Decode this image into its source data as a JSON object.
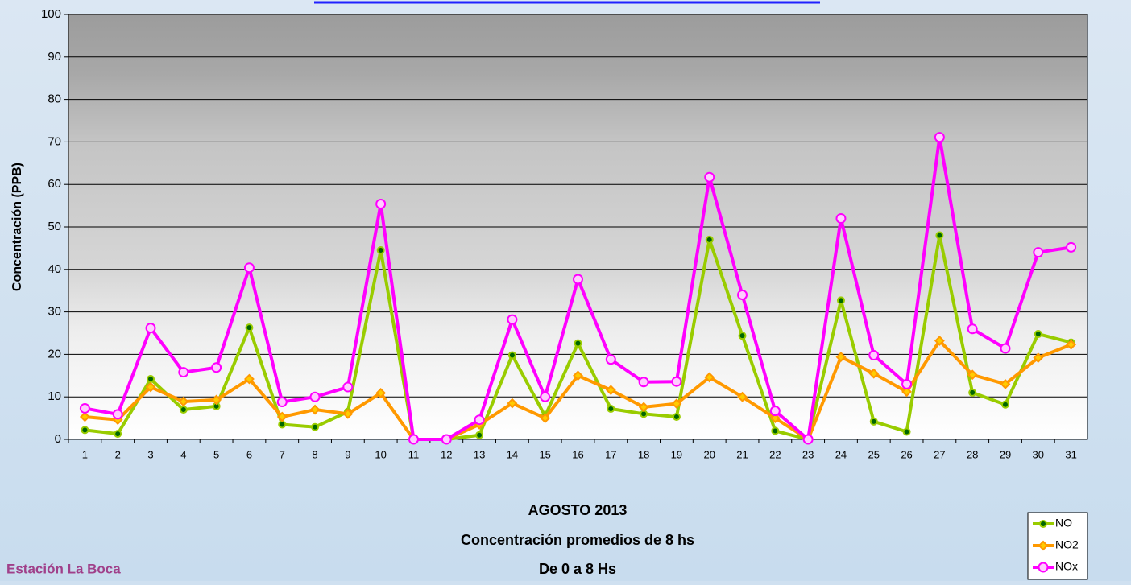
{
  "chart_data": {
    "type": "line",
    "title": [
      "AGOSTO 2013",
      "Concentración promedios de 8 hs",
      "De 0 a 8 Hs"
    ],
    "station": "Estación La Boca",
    "y_label": "Concentración  (PPB)",
    "categories": [
      "1",
      "2",
      "3",
      "4",
      "5",
      "6",
      "7",
      "8",
      "9",
      "10",
      "11",
      "12",
      "13",
      "14",
      "15",
      "16",
      "17",
      "18",
      "19",
      "20",
      "21",
      "22",
      "23",
      "24",
      "25",
      "26",
      "27",
      "28",
      "29",
      "30",
      "31"
    ],
    "series": [
      {
        "name": "NO",
        "color": "#99cc00",
        "marker_fill": "#006600",
        "marker": "circle",
        "values": [
          2.2,
          1.3,
          14.2,
          7,
          7.8,
          26.3,
          3.5,
          2.9,
          6.5,
          44.5,
          0,
          0,
          1,
          19.8,
          5.5,
          22.6,
          7.2,
          6,
          5.3,
          47,
          24.4,
          2,
          0,
          32.7,
          4.2,
          1.8,
          48,
          11,
          8.2,
          24.8,
          22.8
        ]
      },
      {
        "name": "NO2",
        "color": "#ff9900",
        "marker_fill": "#ffcc00",
        "marker": "diamond",
        "values": [
          5.3,
          4.6,
          12.3,
          8.9,
          9.3,
          14.2,
          5.3,
          7,
          6,
          10.9,
          0,
          0,
          3.5,
          8.5,
          5,
          15,
          11.6,
          7.6,
          8.4,
          14.6,
          10,
          5,
          0,
          19.4,
          15.5,
          11.2,
          23.2,
          15.2,
          13,
          19.2,
          22.3
        ]
      },
      {
        "name": "NOx",
        "color": "#ff00ff",
        "marker_fill": "#ffccff",
        "marker": "circle",
        "values": [
          7.3,
          5.9,
          26.2,
          15.8,
          16.9,
          40.4,
          8.8,
          10,
          12.3,
          55.4,
          0,
          0,
          4.6,
          28.2,
          10,
          37.7,
          18.8,
          13.5,
          13.6,
          61.7,
          34,
          6.7,
          0,
          52,
          19.8,
          13,
          71.1,
          26,
          21.4,
          44,
          45.2
        ]
      }
    ],
    "ylim": [
      0,
      100
    ],
    "yticks": [
      0,
      10,
      20,
      30,
      40,
      50,
      60,
      70,
      80,
      90,
      100
    ],
    "grid": true,
    "legend": "bottom-right"
  }
}
